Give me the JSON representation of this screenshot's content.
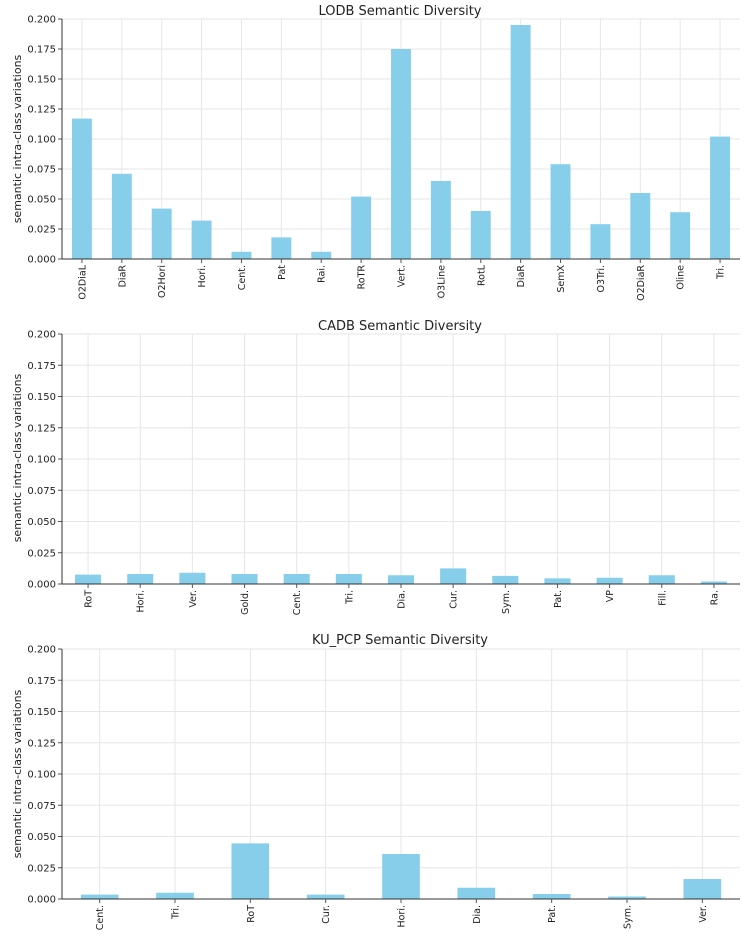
{
  "chart_data": [
    {
      "type": "bar",
      "title": "LODB Semantic Diversity",
      "xlabel": "",
      "ylabel": "semantic intra-class variations",
      "ylim": [
        0,
        0.2
      ],
      "yticks": [
        "0.000",
        "0.025",
        "0.050",
        "0.075",
        "0.100",
        "0.125",
        "0.150",
        "0.175",
        "0.200"
      ],
      "grid": true,
      "bar_color": "#87ceeb",
      "categories": [
        "O2DiaL",
        "DiaR",
        "O2Hori",
        "Hori.",
        "Cent.",
        "Pat",
        "Rai.",
        "RoTR",
        "Vert.",
        "O3Line",
        "RotL",
        "DiaR",
        "SemX",
        "O3Tri.",
        "O2DiaR",
        "Oline",
        "Tri."
      ],
      "values": [
        0.117,
        0.071,
        0.042,
        0.032,
        0.006,
        0.018,
        0.006,
        0.052,
        0.175,
        0.065,
        0.04,
        0.195,
        0.079,
        0.029,
        0.055,
        0.039,
        0.102
      ]
    },
    {
      "type": "bar",
      "title": "CADB Semantic Diversity",
      "xlabel": "",
      "ylabel": "semantic intra-class variations",
      "ylim": [
        0,
        0.2
      ],
      "yticks": [
        "0.000",
        "0.025",
        "0.050",
        "0.075",
        "0.100",
        "0.125",
        "0.150",
        "0.175",
        "0.200"
      ],
      "grid": true,
      "bar_color": "#87ceeb",
      "categories": [
        "RoT",
        "Hori.",
        "Ver.",
        "Gold.",
        "Cent.",
        "Tri.",
        "Dia.",
        "Cur.",
        "Sym.",
        "Pat.",
        "VP",
        "Fill.",
        "Ra."
      ],
      "values": [
        0.0075,
        0.008,
        0.009,
        0.008,
        0.008,
        0.008,
        0.007,
        0.0125,
        0.0065,
        0.0045,
        0.005,
        0.007,
        0.002
      ]
    },
    {
      "type": "bar",
      "title": "KU_PCP Semantic Diversity",
      "xlabel": "",
      "ylabel": "semantic intra-class variations",
      "ylim": [
        0,
        0.2
      ],
      "yticks": [
        "0.000",
        "0.025",
        "0.050",
        "0.075",
        "0.100",
        "0.125",
        "0.150",
        "0.175",
        "0.200"
      ],
      "grid": true,
      "bar_color": "#87ceeb",
      "categories": [
        "Cent.",
        "Tri.",
        "RoT",
        "Cur.",
        "Hori.",
        "Dia.",
        "Pat.",
        "Sym.",
        "Ver."
      ],
      "values": [
        0.0035,
        0.005,
        0.0445,
        0.0035,
        0.036,
        0.009,
        0.004,
        0.002,
        0.016
      ]
    }
  ]
}
